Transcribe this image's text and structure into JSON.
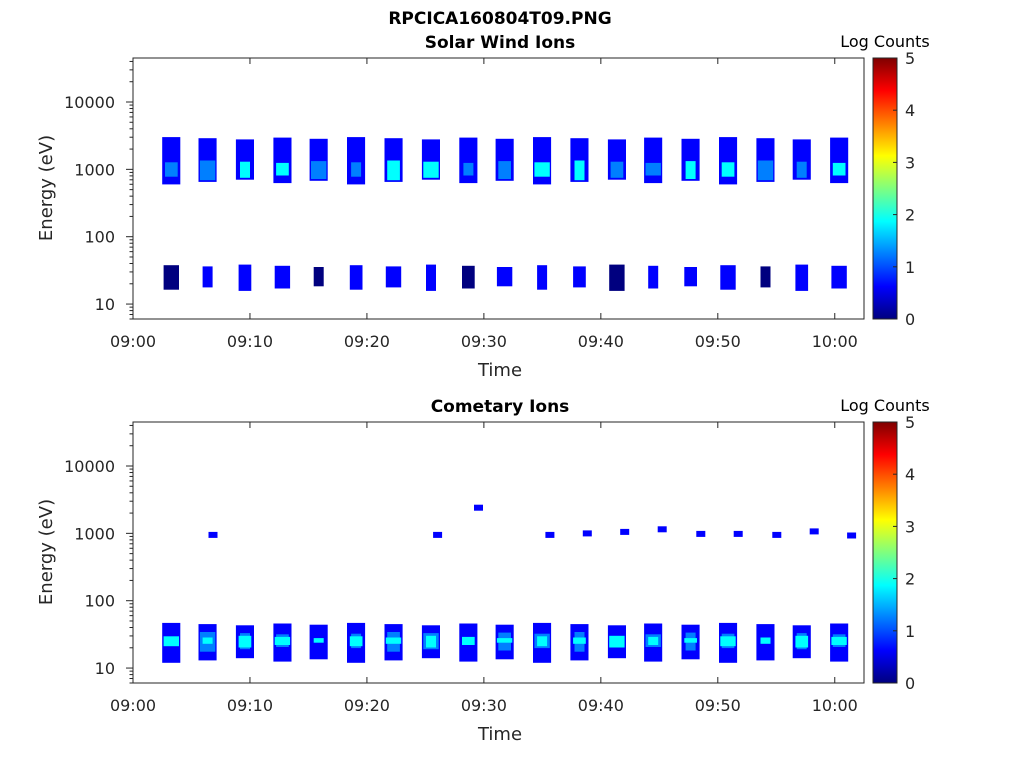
{
  "figure_title": "RPCICA160804T09.PNG",
  "panels": [
    {
      "title": "Solar Wind Ions",
      "xlabel": "Time",
      "ylabel": "Energy (eV)",
      "colorbar_label": "Log Counts"
    },
    {
      "title": "Cometary Ions",
      "xlabel": "Time",
      "ylabel": "Energy (eV)",
      "colorbar_label": "Log Counts"
    }
  ],
  "colors": {
    "axis": "#262626",
    "colormap": [
      "#00007f",
      "#0000ff",
      "#007fff",
      "#00ffff",
      "#7fff7f",
      "#ffff00",
      "#ff7f00",
      "#ff0000",
      "#7f0000"
    ]
  },
  "chart_data": [
    {
      "type": "heatmap",
      "title": "Solar Wind Ions",
      "xlabel": "Time",
      "ylabel": "Energy (eV)",
      "x_ticks": [
        "09:00",
        "09:10",
        "09:20",
        "09:30",
        "09:40",
        "09:50",
        "10:00"
      ],
      "y_ticks": [
        "10",
        "100",
        "1000",
        "10000"
      ],
      "y_scale": "log",
      "ylim": [
        6,
        45000
      ],
      "xlim_minutes": [
        0,
        62.5
      ],
      "colorbar": {
        "label": "Log Counts",
        "range": [
          0,
          5
        ],
        "ticks": [
          "0",
          "1",
          "2",
          "3",
          "4",
          "5"
        ]
      },
      "sweep_start_minutes": [
        2.5,
        5.6,
        8.8,
        12.0,
        15.1,
        18.3,
        21.5,
        24.7,
        27.9,
        31.0,
        34.2,
        37.4,
        40.6,
        43.7,
        46.9,
        50.1,
        53.3,
        56.4,
        59.6
      ],
      "bands": [
        {
          "e_lo": 650,
          "e_hi": 2900,
          "log_counts": 0.6
        },
        {
          "e_lo": 750,
          "e_hi": 1300,
          "log_counts": 1.6
        },
        {
          "e_lo": 17,
          "e_hi": 37,
          "log_counts": 0.4
        }
      ]
    },
    {
      "type": "heatmap",
      "title": "Cometary Ions",
      "xlabel": "Time",
      "ylabel": "Energy (eV)",
      "x_ticks": [
        "09:00",
        "09:10",
        "09:20",
        "09:30",
        "09:40",
        "09:50",
        "10:00"
      ],
      "y_ticks": [
        "10",
        "100",
        "1000",
        "10000"
      ],
      "y_scale": "log",
      "ylim": [
        6,
        45000
      ],
      "xlim_minutes": [
        0,
        62.5
      ],
      "colorbar": {
        "label": "Log Counts",
        "range": [
          0,
          5
        ],
        "ticks": [
          "0",
          "1",
          "2",
          "3",
          "4",
          "5"
        ]
      },
      "sweep_start_minutes": [
        2.5,
        5.6,
        8.8,
        12.0,
        15.1,
        18.3,
        21.5,
        24.7,
        27.9,
        31.0,
        34.2,
        37.4,
        40.6,
        43.7,
        46.9,
        50.1,
        53.3,
        56.4,
        59.6
      ],
      "bands": [
        {
          "e_lo": 13,
          "e_hi": 45,
          "log_counts": 0.5
        },
        {
          "e_lo": 19,
          "e_hi": 33,
          "log_counts": 1.0
        },
        {
          "e_lo": 22,
          "e_hi": 29,
          "log_counts": 1.8
        }
      ],
      "sparse_points": [
        {
          "t_minutes": 6.8,
          "energy": 950,
          "log_counts": 0.4
        },
        {
          "t_minutes": 26.0,
          "energy": 950,
          "log_counts": 0.4
        },
        {
          "t_minutes": 29.5,
          "energy": 2400,
          "log_counts": 0.4
        },
        {
          "t_minutes": 35.6,
          "energy": 950,
          "log_counts": 0.4
        },
        {
          "t_minutes": 38.8,
          "energy": 1000,
          "log_counts": 0.4
        },
        {
          "t_minutes": 42.0,
          "energy": 1050,
          "log_counts": 0.4
        },
        {
          "t_minutes": 45.2,
          "energy": 1150,
          "log_counts": 0.4
        },
        {
          "t_minutes": 48.5,
          "energy": 980,
          "log_counts": 0.4
        },
        {
          "t_minutes": 51.7,
          "energy": 980,
          "log_counts": 0.4
        },
        {
          "t_minutes": 55.0,
          "energy": 950,
          "log_counts": 0.4
        },
        {
          "t_minutes": 58.2,
          "energy": 1070,
          "log_counts": 0.4
        },
        {
          "t_minutes": 61.4,
          "energy": 930,
          "log_counts": 0.4
        }
      ]
    }
  ]
}
